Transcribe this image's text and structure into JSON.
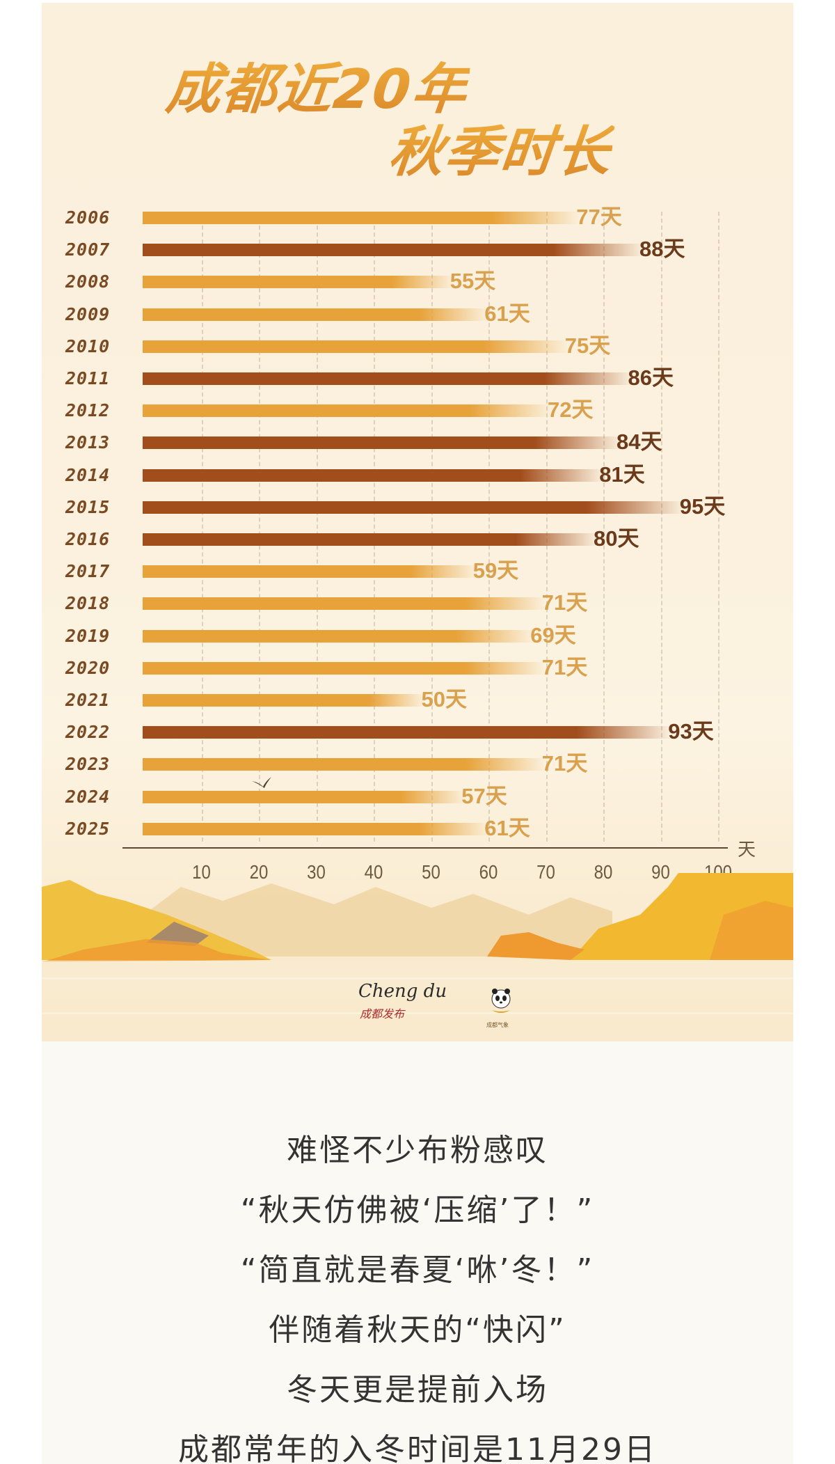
{
  "infographic": {
    "title_line1": "成都近20年",
    "title_line2": "秋季时长",
    "colors": {
      "background": "#fbf0dc",
      "bar_light": "#e7a23a",
      "bar_dark": "#a24d1c",
      "label_light": "#d9a04d",
      "label_dark": "#6b3a1a",
      "year_label": "#7a4a22",
      "article_text": "#333333"
    },
    "logos": {
      "chengdu_brand": "Cheng du",
      "chengdu_brand_sub": "成都发布",
      "panda_logo_caption": "成都气象"
    }
  },
  "rows": [
    {
      "year": "2006",
      "value": "77天",
      "tone": "light"
    },
    {
      "year": "2007",
      "value": "88天",
      "tone": "dark"
    },
    {
      "year": "2008",
      "value": "55天",
      "tone": "light"
    },
    {
      "year": "2009",
      "value": "61天",
      "tone": "light"
    },
    {
      "year": "2010",
      "value": "75天",
      "tone": "light"
    },
    {
      "year": "2011",
      "value": "86天",
      "tone": "dark"
    },
    {
      "year": "2012",
      "value": "72天",
      "tone": "light"
    },
    {
      "year": "2013",
      "value": "84天",
      "tone": "dark"
    },
    {
      "year": "2014",
      "value": "81天",
      "tone": "dark"
    },
    {
      "year": "2015",
      "value": "95天",
      "tone": "dark"
    },
    {
      "year": "2016",
      "value": "80天",
      "tone": "dark"
    },
    {
      "year": "2017",
      "value": "59天",
      "tone": "light"
    },
    {
      "year": "2018",
      "value": "71天",
      "tone": "light"
    },
    {
      "year": "2019",
      "value": "69天",
      "tone": "light"
    },
    {
      "year": "2020",
      "value": "71天",
      "tone": "light"
    },
    {
      "year": "2021",
      "value": "50天",
      "tone": "light"
    },
    {
      "year": "2022",
      "value": "93天",
      "tone": "dark"
    },
    {
      "year": "2023",
      "value": "71天",
      "tone": "light"
    },
    {
      "year": "2024",
      "value": "57天",
      "tone": "light"
    },
    {
      "year": "2025",
      "value": "61天",
      "tone": "light"
    }
  ],
  "axis": {
    "ticks": [
      "10",
      "20",
      "30",
      "40",
      "50",
      "60",
      "70",
      "80",
      "90",
      "100"
    ],
    "unit": "天"
  },
  "chart_data": {
    "type": "bar",
    "orientation": "horizontal",
    "title": "成都近20年秋季时长",
    "categories": [
      "2006",
      "2007",
      "2008",
      "2009",
      "2010",
      "2011",
      "2012",
      "2013",
      "2014",
      "2015",
      "2016",
      "2017",
      "2018",
      "2019",
      "2020",
      "2021",
      "2022",
      "2023",
      "2024",
      "2025"
    ],
    "values": [
      77,
      88,
      55,
      61,
      75,
      86,
      72,
      84,
      81,
      95,
      80,
      59,
      71,
      69,
      71,
      50,
      93,
      71,
      57,
      61
    ],
    "value_labels": [
      "77天",
      "88天",
      "55天",
      "61天",
      "75天",
      "86天",
      "72天",
      "84天",
      "81天",
      "95天",
      "80天",
      "59天",
      "71天",
      "69天",
      "71天",
      "50天",
      "93天",
      "71天",
      "57天",
      "61天"
    ],
    "highlighted_dark_bars": [
      "2007",
      "2011",
      "2013",
      "2014",
      "2015",
      "2016",
      "2022"
    ],
    "xlabel": "天",
    "ylabel": "",
    "xticks": [
      10,
      20,
      30,
      40,
      50,
      60,
      70,
      80,
      90,
      100
    ],
    "xlim": [
      0,
      105
    ],
    "grid": "vertical dashed lines at each tick",
    "legend": "none"
  },
  "article": {
    "lines": [
      "难怪不少布粉感叹",
      "“秋天仿佛被‘压缩’了！”",
      "“简直就是春夏‘咻’冬！”",
      "伴随着秋天的“快闪”",
      "冬天更是提前入场",
      "成都常年的入冬时间是11月29日"
    ]
  }
}
